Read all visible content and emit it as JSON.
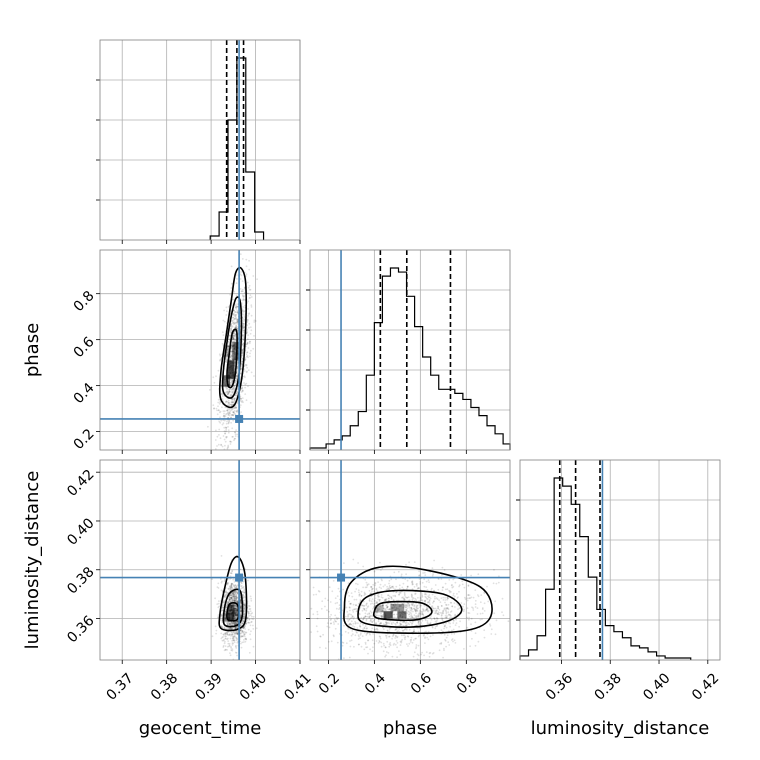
{
  "chart_data": {
    "type": "corner",
    "grid": true,
    "colors": {
      "truth": "#4682b4",
      "hist": "#000000",
      "quantile": "#000000",
      "grid": "#b0b0b0",
      "frame": "#808080"
    },
    "parameters": [
      {
        "name": "geocent_time",
        "label": "geocent_time",
        "range": [
          0.365,
          0.41
        ],
        "ticks": [
          0.37,
          0.38,
          0.39,
          0.4,
          0.41
        ],
        "tick_labels": [
          "0.37",
          "0.38",
          "0.39",
          "0.40",
          "0.41"
        ]
      },
      {
        "name": "phase",
        "label": "phase",
        "range": [
          0.12,
          0.99
        ],
        "ticks": [
          0.2,
          0.4,
          0.6,
          0.8
        ],
        "tick_labels": [
          "0.2",
          "0.4",
          "0.6",
          "0.8"
        ]
      },
      {
        "name": "luminosity_distance",
        "label": "luminosity_distance",
        "range": [
          0.343,
          0.425
        ],
        "ticks": [
          0.36,
          0.38,
          0.4,
          0.42
        ],
        "tick_labels": [
          "0.36",
          "0.38",
          "0.40",
          "0.42"
        ]
      }
    ],
    "truth": {
      "geocent_time": 0.3963,
      "phase": 0.255,
      "luminosity_distance": 0.3768
    },
    "histograms": [
      {
        "parameter": "geocent_time",
        "bin_edges": [
          0.3898,
          0.3918,
          0.3938,
          0.3958,
          0.3978,
          0.3998,
          0.4018
        ],
        "counts": [
          0.02,
          0.14,
          0.6,
          0.91,
          0.34,
          0.04
        ],
        "quantiles": [
          0.3935,
          0.3958,
          0.3973
        ]
      },
      {
        "parameter": "phase",
        "bin_edges": [
          0.12,
          0.155,
          0.19,
          0.225,
          0.26,
          0.295,
          0.33,
          0.365,
          0.4,
          0.435,
          0.47,
          0.505,
          0.54,
          0.575,
          0.61,
          0.645,
          0.68,
          0.715,
          0.75,
          0.785,
          0.82,
          0.855,
          0.89,
          0.925,
          0.96,
          0.99
        ],
        "counts": [
          0.01,
          0.01,
          0.03,
          0.05,
          0.07,
          0.12,
          0.19,
          0.37,
          0.63,
          0.86,
          0.9,
          0.88,
          0.76,
          0.61,
          0.46,
          0.37,
          0.3,
          0.3,
          0.28,
          0.25,
          0.21,
          0.17,
          0.12,
          0.08,
          0.03
        ],
        "quantiles": [
          0.426,
          0.541,
          0.731
        ]
      },
      {
        "parameter": "luminosity_distance",
        "bin_edges": [
          0.343,
          0.3465,
          0.35,
          0.3535,
          0.357,
          0.3605,
          0.364,
          0.3675,
          0.371,
          0.3745,
          0.378,
          0.3815,
          0.385,
          0.3885,
          0.392,
          0.3955,
          0.399,
          0.4025,
          0.406,
          0.4095,
          0.413
        ],
        "counts": [
          0.02,
          0.05,
          0.12,
          0.35,
          0.9,
          0.86,
          0.77,
          0.61,
          0.41,
          0.25,
          0.17,
          0.14,
          0.11,
          0.07,
          0.06,
          0.04,
          0.02,
          0.01,
          0.01,
          0.01
        ],
        "quantiles": [
          0.3593,
          0.3658,
          0.3758
        ]
      }
    ],
    "joint_2d": [
      {
        "x": "geocent_time",
        "y": "phase",
        "peak": [
          0.3953,
          0.5
        ],
        "spread": [
          0.0016,
          0.16
        ],
        "rho": 0.5,
        "cells": [
          [
            0.3935,
            0.42,
            0.0015,
            0.05,
            0.7
          ],
          [
            0.3945,
            0.47,
            0.0015,
            0.08,
            0.95
          ],
          [
            0.3955,
            0.55,
            0.0015,
            0.08,
            0.65
          ],
          [
            0.3935,
            0.55,
            0.0015,
            0.05,
            0.35
          ]
        ],
        "contours": [
          [
            [
              0.3938,
              0.4
            ],
            [
              0.3948,
              0.4
            ],
            [
              0.3956,
              0.48
            ],
            [
              0.3958,
              0.63
            ],
            [
              0.3948,
              0.63
            ],
            [
              0.3941,
              0.54
            ],
            [
              0.3936,
              0.46
            ]
          ],
          [
            [
              0.3928,
              0.37
            ],
            [
              0.3948,
              0.35
            ],
            [
              0.3962,
              0.44
            ],
            [
              0.3968,
              0.62
            ],
            [
              0.3966,
              0.76
            ],
            [
              0.3956,
              0.78
            ],
            [
              0.3945,
              0.7
            ],
            [
              0.3935,
              0.58
            ],
            [
              0.3927,
              0.45
            ]
          ],
          [
            [
              0.3922,
              0.34
            ],
            [
              0.395,
              0.31
            ],
            [
              0.3968,
              0.42
            ],
            [
              0.3977,
              0.62
            ],
            [
              0.3978,
              0.84
            ],
            [
              0.3968,
              0.91
            ],
            [
              0.3955,
              0.89
            ],
            [
              0.3946,
              0.78
            ],
            [
              0.3934,
              0.62
            ],
            [
              0.3922,
              0.46
            ]
          ]
        ]
      },
      {
        "x": "geocent_time",
        "y": "luminosity_distance",
        "peak": [
          0.3953,
          0.3625
        ],
        "spread": [
          0.0015,
          0.0065
        ],
        "rho": 0.0,
        "cells": [
          [
            0.3945,
            0.3605,
            0.0015,
            0.0035,
            0.9
          ],
          [
            0.3945,
            0.364,
            0.0015,
            0.0035,
            0.75
          ],
          [
            0.3935,
            0.3605,
            0.0015,
            0.0035,
            0.45
          ],
          [
            0.3955,
            0.3625,
            0.0015,
            0.0035,
            0.45
          ]
        ],
        "contours": [
          [
            [
              0.3938,
              0.3595
            ],
            [
              0.3958,
              0.3595
            ],
            [
              0.3962,
              0.3625
            ],
            [
              0.3958,
              0.366
            ],
            [
              0.3942,
              0.366
            ],
            [
              0.3936,
              0.3625
            ]
          ],
          [
            [
              0.393,
              0.3575
            ],
            [
              0.3958,
              0.3572
            ],
            [
              0.397,
              0.361
            ],
            [
              0.3968,
              0.37
            ],
            [
              0.3958,
              0.372
            ],
            [
              0.394,
              0.37
            ],
            [
              0.393,
              0.364
            ]
          ],
          [
            [
              0.3922,
              0.356
            ],
            [
              0.3958,
              0.3555
            ],
            [
              0.3978,
              0.36
            ],
            [
              0.3977,
              0.377
            ],
            [
              0.3963,
              0.385
            ],
            [
              0.3946,
              0.383
            ],
            [
              0.393,
              0.372
            ],
            [
              0.392,
              0.362
            ]
          ]
        ]
      },
      {
        "x": "phase",
        "y": "luminosity_distance",
        "peak": [
          0.52,
          0.3625
        ],
        "spread": [
          0.17,
          0.0075
        ],
        "rho": 0.1,
        "cells": [
          [
            0.46,
            0.3615,
            0.04,
            0.003,
            0.9
          ],
          [
            0.52,
            0.3615,
            0.04,
            0.003,
            0.75
          ],
          [
            0.5,
            0.3645,
            0.06,
            0.003,
            0.55
          ],
          [
            0.42,
            0.364,
            0.04,
            0.003,
            0.4
          ]
        ],
        "contours": [
          [
            [
              0.42,
              0.36
            ],
            [
              0.58,
              0.3595
            ],
            [
              0.65,
              0.3625
            ],
            [
              0.6,
              0.3665
            ],
            [
              0.44,
              0.3665
            ],
            [
              0.4,
              0.363
            ]
          ],
          [
            [
              0.36,
              0.358
            ],
            [
              0.56,
              0.3565
            ],
            [
              0.72,
              0.359
            ],
            [
              0.78,
              0.364
            ],
            [
              0.7,
              0.37
            ],
            [
              0.5,
              0.3715
            ],
            [
              0.37,
              0.369
            ],
            [
              0.33,
              0.363
            ]
          ],
          [
            [
              0.3,
              0.356
            ],
            [
              0.55,
              0.354
            ],
            [
              0.82,
              0.3555
            ],
            [
              0.91,
              0.362
            ],
            [
              0.86,
              0.373
            ],
            [
              0.62,
              0.38
            ],
            [
              0.42,
              0.381
            ],
            [
              0.3,
              0.375
            ],
            [
              0.27,
              0.365
            ]
          ]
        ]
      }
    ]
  }
}
